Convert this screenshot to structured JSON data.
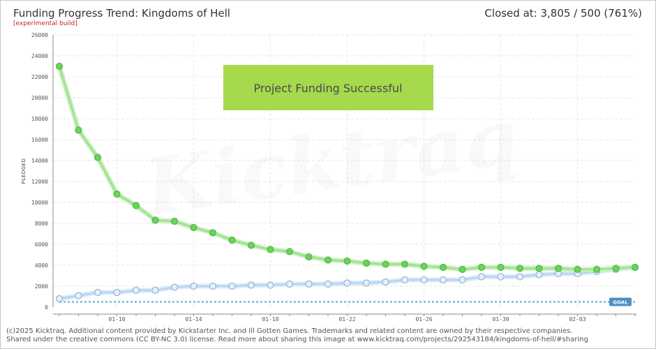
{
  "header": {
    "title": "Funding Progress Trend: Kingdoms of Hell",
    "subtitle": "[experimental build]",
    "status": "Closed at:  3,805 /  500 (761%)"
  },
  "banner": "Project Funding Successful",
  "goal_label": "GOAL",
  "footer": {
    "line1": "(c)2025 Kicktraq. Additional content provided by Kickstarter Inc. and Ill Gotten Games. Trademarks and related content are owned by their respective companies.",
    "line2": "Shared under the creative commons (CC BY-NC 3.0) license. Read more about sharing this image at www.kicktraq.com/projects/292543184/kingdoms-of-hell/#sharing"
  },
  "colors": {
    "trend": "#6cd35a",
    "trend_glow": "#c8f0bf",
    "pledged": "#b8d4f0",
    "pledged_point": "#e4f0fc",
    "goal": "#8fc3e0",
    "goal_badge": "#4a90c8",
    "banner_bg": "#a6d94c",
    "grid": "#e6e6e6"
  },
  "chart_data": {
    "type": "line",
    "ylabel": "PLEDGED",
    "ylim": [
      0,
      26000
    ],
    "y_ticks": [
      0,
      2000,
      4000,
      6000,
      8000,
      10000,
      12000,
      14000,
      16000,
      18000,
      20000,
      22000,
      24000,
      26000
    ],
    "x_tick_labels": [
      "01-10",
      "01-14",
      "01-18",
      "01-22",
      "01-26",
      "01-30",
      "02-03"
    ],
    "x_tick_positions": [
      3,
      7,
      11,
      15,
      19,
      23,
      27
    ],
    "goal": 500,
    "series": [
      {
        "role": "trend",
        "values": [
          23000,
          16900,
          14300,
          10800,
          9700,
          8300,
          8200,
          7600,
          7100,
          6400,
          5900,
          5500,
          5300,
          4800,
          4500,
          4400,
          4200,
          4100,
          4100,
          3900,
          3800,
          3600,
          3800,
          3800,
          3700,
          3700,
          3700,
          3600,
          3600,
          3700,
          3805
        ]
      },
      {
        "role": "pledged",
        "values": [
          800,
          1100,
          1400,
          1400,
          1600,
          1600,
          1900,
          2000,
          2000,
          2000,
          2100,
          2100,
          2200,
          2200,
          2200,
          2300,
          2300,
          2400,
          2600,
          2600,
          2600,
          2600,
          2900,
          2900,
          2900,
          3100,
          3200,
          3200,
          3400,
          3600,
          3805
        ]
      }
    ]
  }
}
